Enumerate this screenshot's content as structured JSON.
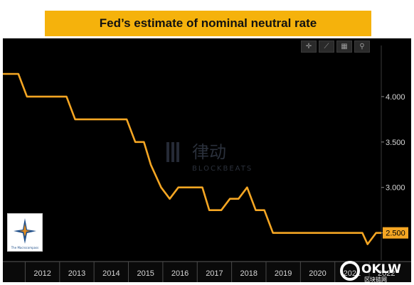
{
  "title": "Fed’s estimate of nominal neutral rate",
  "colors": {
    "banner": "#f5b20c",
    "background": "#000000",
    "line": "#f5a623",
    "axis_text": "#d8d8d8",
    "last_value_bg": "#f5a623"
  },
  "toolbar": {
    "items": [
      {
        "name": "crosshair-icon",
        "glyph": "✛"
      },
      {
        "name": "draw-line-icon",
        "glyph": "⟋"
      },
      {
        "name": "save-icon",
        "glyph": "▦"
      },
      {
        "name": "zoom-icon",
        "glyph": "⚲"
      }
    ]
  },
  "chart_data": {
    "type": "line",
    "title": "Fed’s estimate of nominal neutral rate",
    "x_tick_labels": [
      "2012",
      "2013",
      "2014",
      "2015",
      "2016",
      "2017",
      "2018",
      "2019",
      "2020",
      "2021",
      "2022"
    ],
    "y_tick_labels": [
      "4.000",
      "3.500",
      "3.000",
      "2.500"
    ],
    "y_ticks": [
      4.0,
      3.5,
      3.0,
      2.5
    ],
    "ylim": [
      2.2,
      4.5
    ],
    "xlim": [
      2011.35,
      2022.35
    ],
    "last_value_label": "2.500",
    "grid": false,
    "series": [
      {
        "x": [
          2011.35,
          2011.8,
          2012.05,
          2013.2,
          2013.45,
          2014.2,
          2014.95,
          2015.2,
          2015.45,
          2015.65,
          2015.95,
          2016.2,
          2016.45,
          2016.7,
          2017.15,
          2017.35,
          2017.7,
          2017.95,
          2018.2,
          2018.45,
          2018.7,
          2018.95,
          2019.2,
          2019.45,
          2021.8,
          2021.95,
          2022.2,
          2022.35
        ],
        "y": [
          4.25,
          4.25,
          4.0,
          4.0,
          3.75,
          3.75,
          3.75,
          3.5,
          3.5,
          3.25,
          3.0,
          2.875,
          3.0,
          3.0,
          3.0,
          2.75,
          2.75,
          2.875,
          2.875,
          3.0,
          2.75,
          2.75,
          2.5,
          2.5,
          2.5,
          2.375,
          2.5,
          2.5
        ]
      }
    ]
  },
  "watermark": {
    "cn": "律动",
    "en": "BLOCKBEATS",
    "oklw": "OKLW",
    "oklw_sub": "区块链网"
  },
  "logo": {
    "text": "The Macrocompass"
  }
}
